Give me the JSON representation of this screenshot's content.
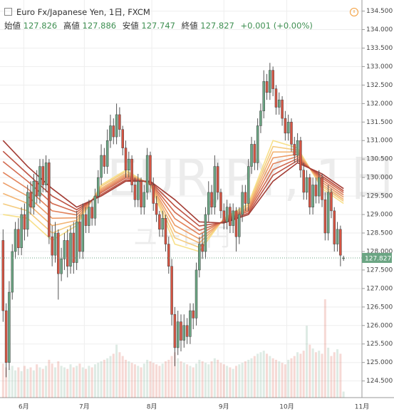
{
  "header": {
    "symbol": "Euro Fx/Japanese Yen, 1日, FXCM",
    "open_label": "始値",
    "high_label": "高値",
    "low_label": "安値",
    "close_label": "終値",
    "change": "+0.001 (+0.00%)"
  },
  "chart_data": {
    "type": "candlestick",
    "watermark": "EURJPY, 1日",
    "watermark_sub": "ユーロ円",
    "up_color": "#6ba583",
    "down_color": "#d75442",
    "xlim": [
      -1,
      117
    ],
    "ylim": [
      124.05,
      134.8
    ],
    "xticks": [
      {
        "value": 6.75,
        "label": "6月"
      },
      {
        "value": 26.5,
        "label": "7月"
      },
      {
        "value": 48.5,
        "label": "8月"
      },
      {
        "value": 72,
        "label": "9月"
      },
      {
        "value": 92.5,
        "label": "10月"
      },
      {
        "value": 117,
        "label": "11月"
      }
    ],
    "yticks": [
      {
        "value": 124.5,
        "label": "124.500"
      },
      {
        "value": 125,
        "label": "125.000"
      },
      {
        "value": 125.5,
        "label": "125.500"
      },
      {
        "value": 126,
        "label": "126.000"
      },
      {
        "value": 126.5,
        "label": "126.500"
      },
      {
        "value": 127,
        "label": "127.000"
      },
      {
        "value": 127.5,
        "label": "127.500"
      },
      {
        "value": 128,
        "label": "128.000"
      },
      {
        "value": 128.5,
        "label": "128.500"
      },
      {
        "value": 129,
        "label": "129.000"
      },
      {
        "value": 129.5,
        "label": "129.500"
      },
      {
        "value": 130,
        "label": "130.000"
      },
      {
        "value": 130.5,
        "label": "130.500"
      },
      {
        "value": 131,
        "label": "131.000"
      },
      {
        "value": 131.5,
        "label": "131.500"
      },
      {
        "value": 132,
        "label": "132.000"
      },
      {
        "value": 132.5,
        "label": "132.500"
      },
      {
        "value": 133,
        "label": "133.000"
      },
      {
        "value": 133.5,
        "label": "133.500"
      },
      {
        "value": 134,
        "label": "134.000"
      },
      {
        "value": 134.5,
        "label": "134.500"
      }
    ],
    "grid": true,
    "open": [
      128.3,
      126.4,
      125.0,
      126.9,
      128.0,
      128.6,
      128.1,
      129.0,
      128.6,
      129.6,
      129.2,
      129.9,
      129.5,
      130.3,
      129.8,
      130.4,
      128.4,
      127.9,
      128.5,
      127.4,
      127.8,
      128.3,
      127.6,
      128.5,
      127.7,
      128.8,
      128.0,
      129.0,
      128.7,
      129.2,
      128.9,
      129.5,
      130.0,
      130.6,
      130.3,
      131.0,
      131.4,
      131.1,
      131.7,
      131.3,
      130.8,
      130.2,
      130.5,
      129.8,
      129.4,
      129.9,
      129.2,
      129.6,
      130.6,
      129.8,
      129.3,
      129.0,
      128.6,
      128.9,
      128.2,
      127.6,
      126.3,
      125.4,
      126.1,
      125.6,
      126.0,
      125.7,
      126.4,
      126.2,
      127.5,
      128.2,
      128.0,
      129.0,
      129.6,
      129.2,
      130.3,
      129.6,
      129.1,
      128.8,
      129.2,
      128.7,
      129.1,
      128.4,
      129.0,
      129.6,
      129.3,
      130.3,
      130.9,
      130.4,
      131.4,
      131.8,
      132.6,
      132.3,
      132.9,
      132.4,
      131.9,
      132.1,
      131.6,
      131.2,
      131.5,
      130.9,
      130.6,
      131.0,
      130.2,
      129.6,
      130.0,
      129.2,
      129.8,
      129.5,
      130.0,
      129.4,
      128.5,
      129.6,
      129.1,
      128.2,
      128.6,
      127.826
    ],
    "high": [
      128.6,
      126.6,
      127.2,
      128.2,
      128.8,
      128.9,
      129.2,
      129.3,
      129.8,
      129.9,
      130.1,
      130.2,
      130.5,
      130.5,
      130.6,
      130.5,
      128.7,
      128.8,
      128.6,
      128.1,
      128.5,
      128.6,
      128.7,
      128.8,
      129.1,
      129.0,
      129.3,
      129.2,
      129.4,
      129.4,
      129.7,
      130.2,
      130.9,
      130.8,
      131.3,
      131.7,
      131.6,
      132.0,
      131.9,
      131.4,
      131.0,
      130.7,
      130.6,
      130.0,
      130.1,
      130.0,
      129.8,
      130.8,
      130.7,
      130.0,
      129.5,
      129.1,
      129.1,
      129.0,
      128.4,
      127.8,
      126.5,
      126.4,
      126.3,
      126.3,
      126.2,
      126.6,
      126.6,
      127.7,
      128.4,
      128.5,
      129.2,
      129.9,
      129.8,
      130.6,
      130.4,
      129.7,
      129.3,
      129.4,
      129.3,
      129.3,
      129.2,
      129.2,
      129.8,
      129.8,
      130.5,
      131.1,
      131.0,
      131.6,
      132.0,
      132.9,
      132.8,
      133.1,
      133.0,
      132.5,
      132.3,
      132.2,
      131.8,
      131.7,
      131.6,
      131.1,
      131.2,
      131.1,
      130.4,
      130.2,
      130.1,
      130.0,
      130.0,
      130.2,
      130.1,
      129.6,
      129.8,
      129.7,
      129.2,
      128.8,
      128.7,
      127.886
    ],
    "low": [
      126.1,
      124.6,
      124.8,
      126.7,
      127.8,
      127.9,
      127.9,
      128.3,
      128.4,
      129.0,
      129.0,
      129.3,
      129.3,
      129.6,
      129.6,
      128.2,
      127.6,
      127.7,
      126.7,
      127.2,
      127.5,
      127.3,
      127.4,
      127.4,
      127.5,
      127.8,
      127.8,
      128.5,
      128.5,
      128.7,
      128.7,
      129.3,
      129.8,
      130.1,
      130.1,
      130.8,
      130.9,
      130.9,
      131.1,
      130.6,
      130.0,
      130.0,
      129.6,
      129.2,
      129.2,
      129.0,
      129.0,
      129.4,
      129.6,
      129.1,
      128.8,
      128.4,
      128.4,
      128.0,
      127.4,
      126.0,
      124.9,
      125.2,
      125.3,
      125.4,
      125.5,
      125.5,
      125.9,
      126.0,
      127.3,
      127.8,
      127.8,
      128.8,
      129.0,
      129.0,
      129.4,
      128.9,
      128.6,
      128.6,
      128.5,
      128.5,
      128.0,
      128.2,
      128.8,
      129.1,
      129.1,
      130.1,
      130.2,
      130.2,
      131.2,
      131.6,
      132.1,
      132.1,
      132.2,
      131.7,
      131.7,
      131.4,
      131.0,
      131.0,
      130.7,
      130.4,
      130.4,
      130.0,
      129.4,
      129.4,
      129.0,
      129.0,
      129.3,
      129.3,
      129.2,
      128.3,
      128.3,
      128.9,
      128.0,
      128.0,
      127.6,
      127.747
    ],
    "close": [
      126.4,
      125.0,
      126.9,
      128.0,
      128.6,
      128.1,
      129.0,
      128.6,
      129.6,
      129.2,
      129.9,
      129.5,
      130.3,
      129.8,
      130.4,
      128.4,
      127.9,
      128.5,
      127.4,
      127.8,
      128.3,
      127.6,
      128.5,
      127.7,
      128.8,
      128.0,
      129.0,
      128.7,
      129.2,
      128.9,
      129.5,
      130.0,
      130.6,
      130.3,
      131.0,
      131.4,
      131.1,
      131.7,
      131.3,
      130.8,
      130.2,
      130.5,
      129.8,
      129.4,
      129.9,
      129.2,
      129.6,
      130.6,
      129.8,
      129.3,
      129.0,
      128.6,
      128.9,
      128.2,
      127.6,
      126.3,
      125.4,
      126.1,
      125.6,
      126.0,
      125.7,
      126.4,
      126.2,
      127.5,
      128.2,
      128.0,
      129.0,
      129.6,
      129.2,
      130.3,
      129.6,
      129.1,
      128.8,
      129.2,
      128.7,
      129.1,
      128.4,
      129.0,
      129.6,
      129.3,
      130.3,
      130.9,
      130.4,
      131.4,
      131.8,
      132.6,
      132.3,
      132.9,
      132.4,
      131.9,
      132.1,
      131.6,
      131.2,
      131.5,
      130.9,
      130.6,
      131.0,
      130.2,
      129.6,
      130.0,
      129.2,
      129.8,
      129.5,
      130.0,
      129.4,
      128.5,
      129.6,
      129.1,
      128.2,
      128.6,
      127.9,
      127.827
    ],
    "volume": [
      45,
      40,
      38,
      42,
      36,
      40,
      35,
      42,
      38,
      40,
      36,
      44,
      40,
      38,
      42,
      50,
      45,
      40,
      48,
      42,
      40,
      38,
      44,
      40,
      42,
      45,
      40,
      38,
      42,
      40,
      44,
      46,
      48,
      50,
      52,
      55,
      58,
      70,
      60,
      55,
      50,
      48,
      46,
      44,
      42,
      40,
      45,
      50,
      48,
      46,
      44,
      42,
      45,
      48,
      50,
      55,
      60,
      52,
      48,
      46,
      44,
      42,
      40,
      45,
      50,
      48,
      46,
      44,
      48,
      52,
      50,
      46,
      44,
      42,
      40,
      38,
      42,
      44,
      46,
      48,
      50,
      52,
      55,
      58,
      60,
      62,
      58,
      55,
      52,
      50,
      48,
      46,
      44,
      50,
      52,
      55,
      60,
      58,
      62,
      95,
      70,
      65,
      60,
      62,
      58,
      130,
      66,
      55,
      60,
      64,
      58,
      8
    ],
    "ribbon_x": [
      0,
      8,
      16,
      24,
      32,
      40,
      48,
      56,
      64,
      72,
      80,
      88,
      96,
      104,
      111
    ],
    "ribbons": [
      {
        "color": "#f7e08a",
        "values": [
          129.0,
          128.9,
          128.3,
          128.7,
          129.8,
          130.2,
          129.8,
          128.2,
          128.0,
          128.9,
          129.3,
          131.0,
          130.8,
          129.7,
          129.3
        ]
      },
      {
        "color": "#f5cb7e",
        "values": [
          129.29,
          129.1,
          128.5,
          128.77,
          129.76,
          130.16,
          129.81,
          128.37,
          128.11,
          128.88,
          129.26,
          130.84,
          130.74,
          129.76,
          129.36
        ]
      },
      {
        "color": "#f2b473",
        "values": [
          129.57,
          129.3,
          128.7,
          128.84,
          129.71,
          130.11,
          129.83,
          128.54,
          128.23,
          128.86,
          129.21,
          130.69,
          130.69,
          129.81,
          129.41
        ]
      },
      {
        "color": "#ec9c67",
        "values": [
          129.86,
          129.5,
          128.9,
          128.91,
          129.67,
          130.07,
          129.84,
          128.71,
          128.34,
          128.84,
          129.17,
          130.53,
          130.63,
          129.87,
          129.47
        ]
      },
      {
        "color": "#e2835b",
        "values": [
          130.14,
          129.7,
          129.1,
          128.99,
          129.63,
          130.03,
          129.86,
          128.89,
          128.46,
          128.83,
          129.13,
          130.37,
          130.57,
          129.93,
          129.53
        ]
      },
      {
        "color": "#d26a4f",
        "values": [
          130.43,
          129.9,
          129.3,
          129.06,
          129.59,
          129.99,
          129.87,
          129.06,
          128.57,
          128.81,
          129.09,
          130.21,
          130.51,
          129.99,
          129.59
        ]
      },
      {
        "color": "#bd5242",
        "values": [
          130.71,
          130.1,
          129.5,
          129.13,
          129.54,
          129.94,
          129.89,
          129.23,
          128.69,
          128.79,
          129.04,
          130.06,
          130.46,
          130.04,
          129.64
        ]
      },
      {
        "color": "#a33c34",
        "values": [
          131.0,
          130.3,
          129.7,
          129.2,
          129.5,
          129.9,
          129.9,
          129.4,
          128.8,
          128.77,
          129.0,
          129.9,
          130.4,
          130.1,
          129.7
        ]
      }
    ]
  }
}
